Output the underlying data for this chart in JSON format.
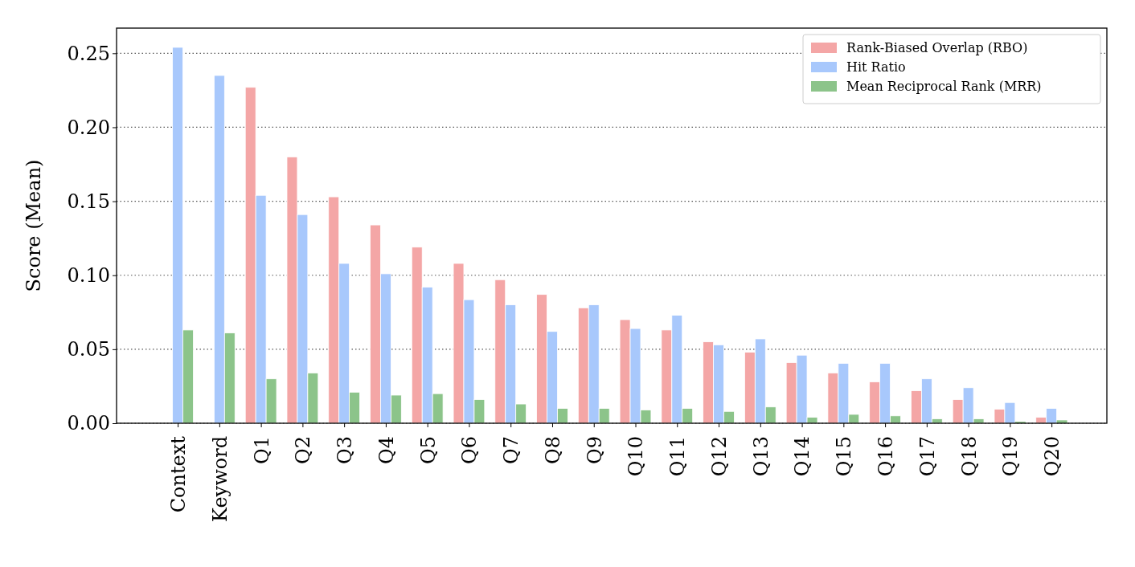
{
  "chart_data": {
    "type": "bar",
    "ylabel": "Score (Mean)",
    "categories": [
      "Context",
      "Keyword",
      "Q1",
      "Q2",
      "Q3",
      "Q4",
      "Q5",
      "Q6",
      "Q7",
      "Q8",
      "Q9",
      "Q10",
      "Q11",
      "Q12",
      "Q13",
      "Q14",
      "Q15",
      "Q16",
      "Q17",
      "Q18",
      "Q19",
      "Q20"
    ],
    "series": [
      {
        "name": "Rank-Biased Overlap (RBO)",
        "color": "#f4a6a6",
        "values": [
          null,
          null,
          0.227,
          0.18,
          0.153,
          0.134,
          0.119,
          0.108,
          0.097,
          0.087,
          0.078,
          0.07,
          0.063,
          0.055,
          0.048,
          0.041,
          0.034,
          0.028,
          0.022,
          0.016,
          0.0095,
          0.004
        ]
      },
      {
        "name": "Hit Ratio",
        "color": "#a8c8fc",
        "values": [
          0.254,
          0.235,
          0.154,
          0.141,
          0.108,
          0.101,
          0.092,
          0.0835,
          0.08,
          0.062,
          0.08,
          0.064,
          0.073,
          0.053,
          0.057,
          0.046,
          0.0405,
          0.0405,
          0.03,
          0.024,
          0.014,
          0.01
        ]
      },
      {
        "name": "Mean Reciprocal Rank (MRR)",
        "color": "#8cc48a",
        "values": [
          0.063,
          0.061,
          0.03,
          0.034,
          0.021,
          0.019,
          0.02,
          0.016,
          0.013,
          0.01,
          0.01,
          0.009,
          0.01,
          0.008,
          0.011,
          0.004,
          0.006,
          0.005,
          0.003,
          0.003,
          0.001,
          0.002
        ]
      }
    ],
    "ylim": [
      0,
      0.267
    ],
    "yticks": [
      {
        "value": 0,
        "label": "0.00"
      },
      {
        "value": 0.05,
        "label": "0.05"
      },
      {
        "value": 0.1,
        "label": "0.10"
      },
      {
        "value": 0.15,
        "label": "0.15"
      },
      {
        "value": 0.2,
        "label": "0.20"
      },
      {
        "value": 0.25,
        "label": "0.25"
      }
    ],
    "grid": "y",
    "legend": "top right"
  }
}
